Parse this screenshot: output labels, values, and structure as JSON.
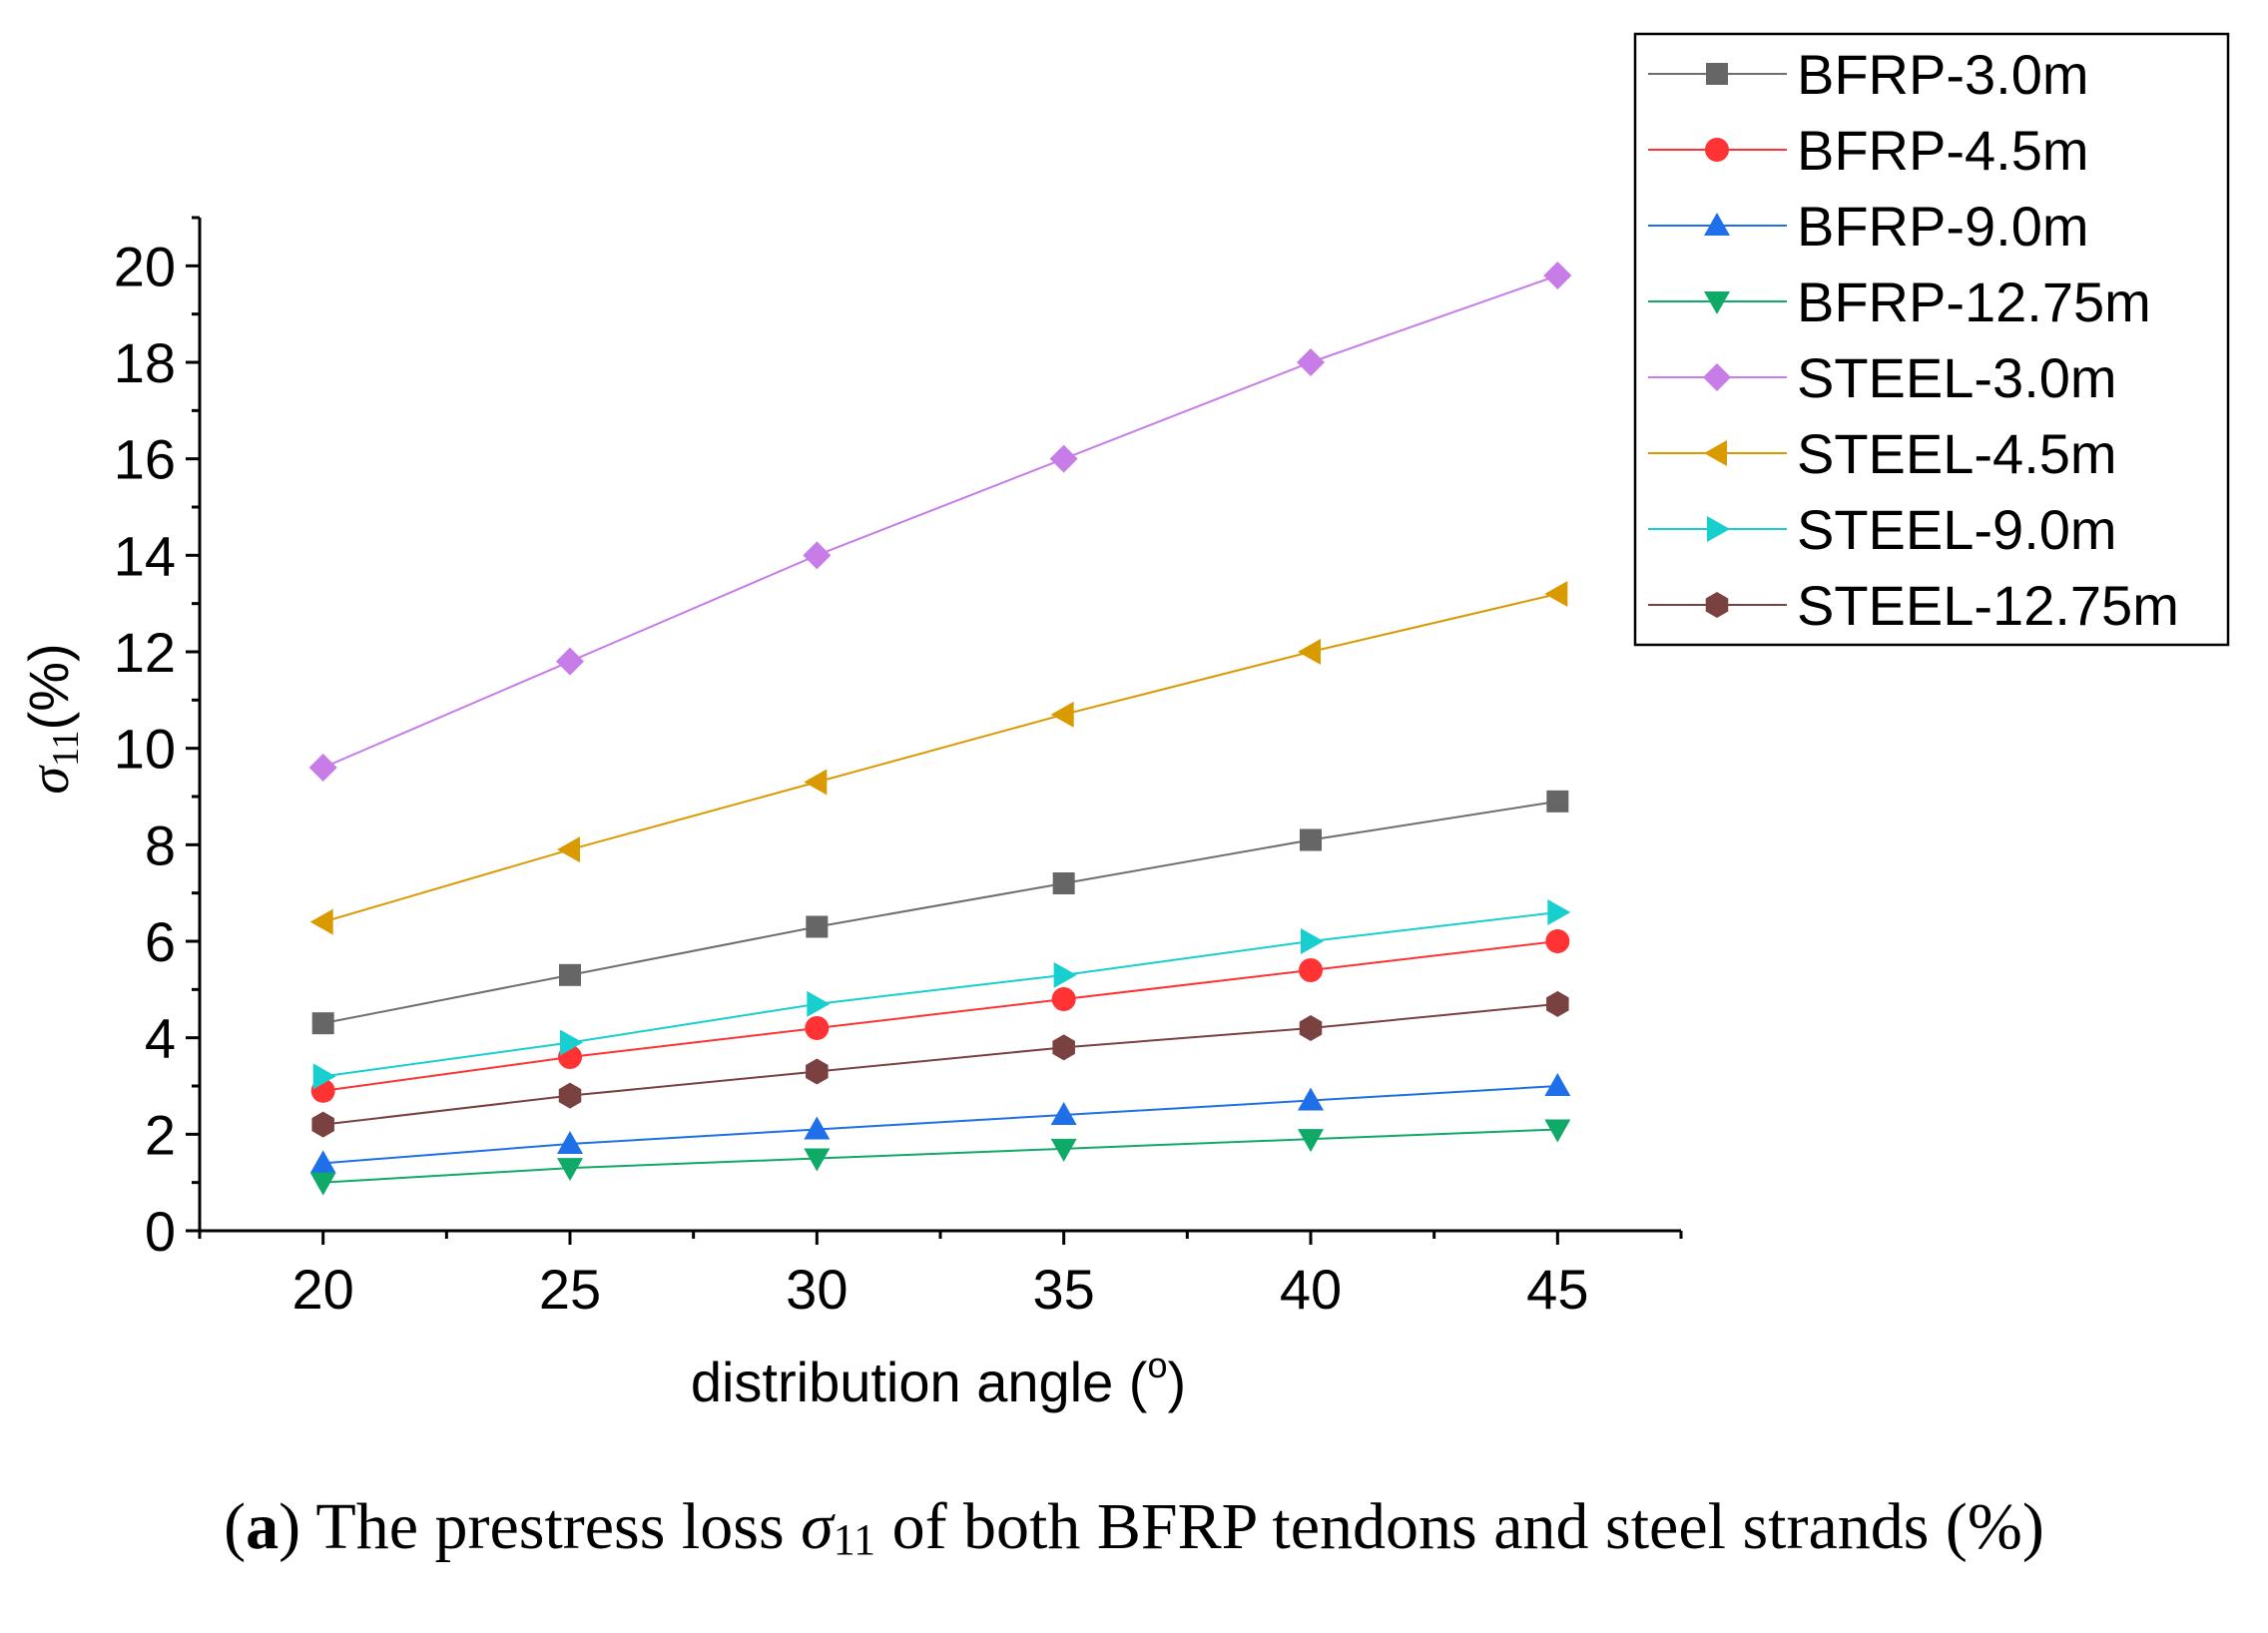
{
  "chart_data": {
    "type": "line",
    "title": "",
    "xlabel": "distribution angle (",
    "xlabel_degree": "o",
    "xlabel_close": ")",
    "ylabel_symbol": "σ",
    "ylabel_sub": "11",
    "ylabel_unit": "(%)",
    "x": [
      20,
      25,
      30,
      35,
      40,
      45
    ],
    "xlim": [
      17.5,
      47.5
    ],
    "ylim": [
      0,
      21
    ],
    "xticks": [
      20,
      25,
      30,
      35,
      40,
      45
    ],
    "yticks": [
      0,
      2,
      4,
      6,
      8,
      10,
      12,
      14,
      16,
      18,
      20
    ],
    "legend_position": "top-right, outside plot area",
    "series": [
      {
        "name": "BFRP-3.0m",
        "marker": "square",
        "color": "#666666",
        "line_color": "#6e6e6e",
        "values": [
          4.3,
          5.3,
          6.3,
          7.2,
          8.1,
          8.9
        ]
      },
      {
        "name": "BFRP-4.5m",
        "marker": "circle",
        "color": "#ff3333",
        "line_color": "#ff3333",
        "values": [
          2.9,
          3.6,
          4.2,
          4.8,
          5.4,
          6.0
        ]
      },
      {
        "name": "BFRP-9.0m",
        "marker": "triangle-up",
        "color": "#1f6fe8",
        "line_color": "#1f6fe8",
        "values": [
          1.4,
          1.8,
          2.1,
          2.4,
          2.7,
          3.0
        ]
      },
      {
        "name": "BFRP-12.75m",
        "marker": "triangle-down",
        "color": "#0fa968",
        "line_color": "#0fa968",
        "values": [
          1.0,
          1.3,
          1.5,
          1.7,
          1.9,
          2.1
        ]
      },
      {
        "name": "STEEL-3.0m",
        "marker": "diamond",
        "color": "#c77ce8",
        "line_color": "#c77ce8",
        "values": [
          9.6,
          11.8,
          14.0,
          16.0,
          18.0,
          19.8
        ]
      },
      {
        "name": "STEEL-4.5m",
        "marker": "triangle-left",
        "color": "#d99a00",
        "line_color": "#d99a00",
        "values": [
          6.4,
          7.9,
          9.3,
          10.7,
          12.0,
          13.2
        ]
      },
      {
        "name": "STEEL-9.0m",
        "marker": "triangle-right",
        "color": "#17cfcf",
        "line_color": "#17cfcf",
        "values": [
          3.2,
          3.9,
          4.7,
          5.3,
          6.0,
          6.6
        ]
      },
      {
        "name": "STEEL-12.75m",
        "marker": "hexagon",
        "color": "#7a4141",
        "line_color": "#7a4141",
        "values": [
          2.2,
          2.8,
          3.3,
          3.8,
          4.2,
          4.7
        ]
      }
    ]
  },
  "caption": {
    "open_paren": "(",
    "label": "a",
    "close_paren": ")",
    "text_before": " The prestress loss ",
    "symbol": "σ",
    "subscript": "11",
    "text_after": " of both BFRP tendons and steel strands (%)"
  }
}
